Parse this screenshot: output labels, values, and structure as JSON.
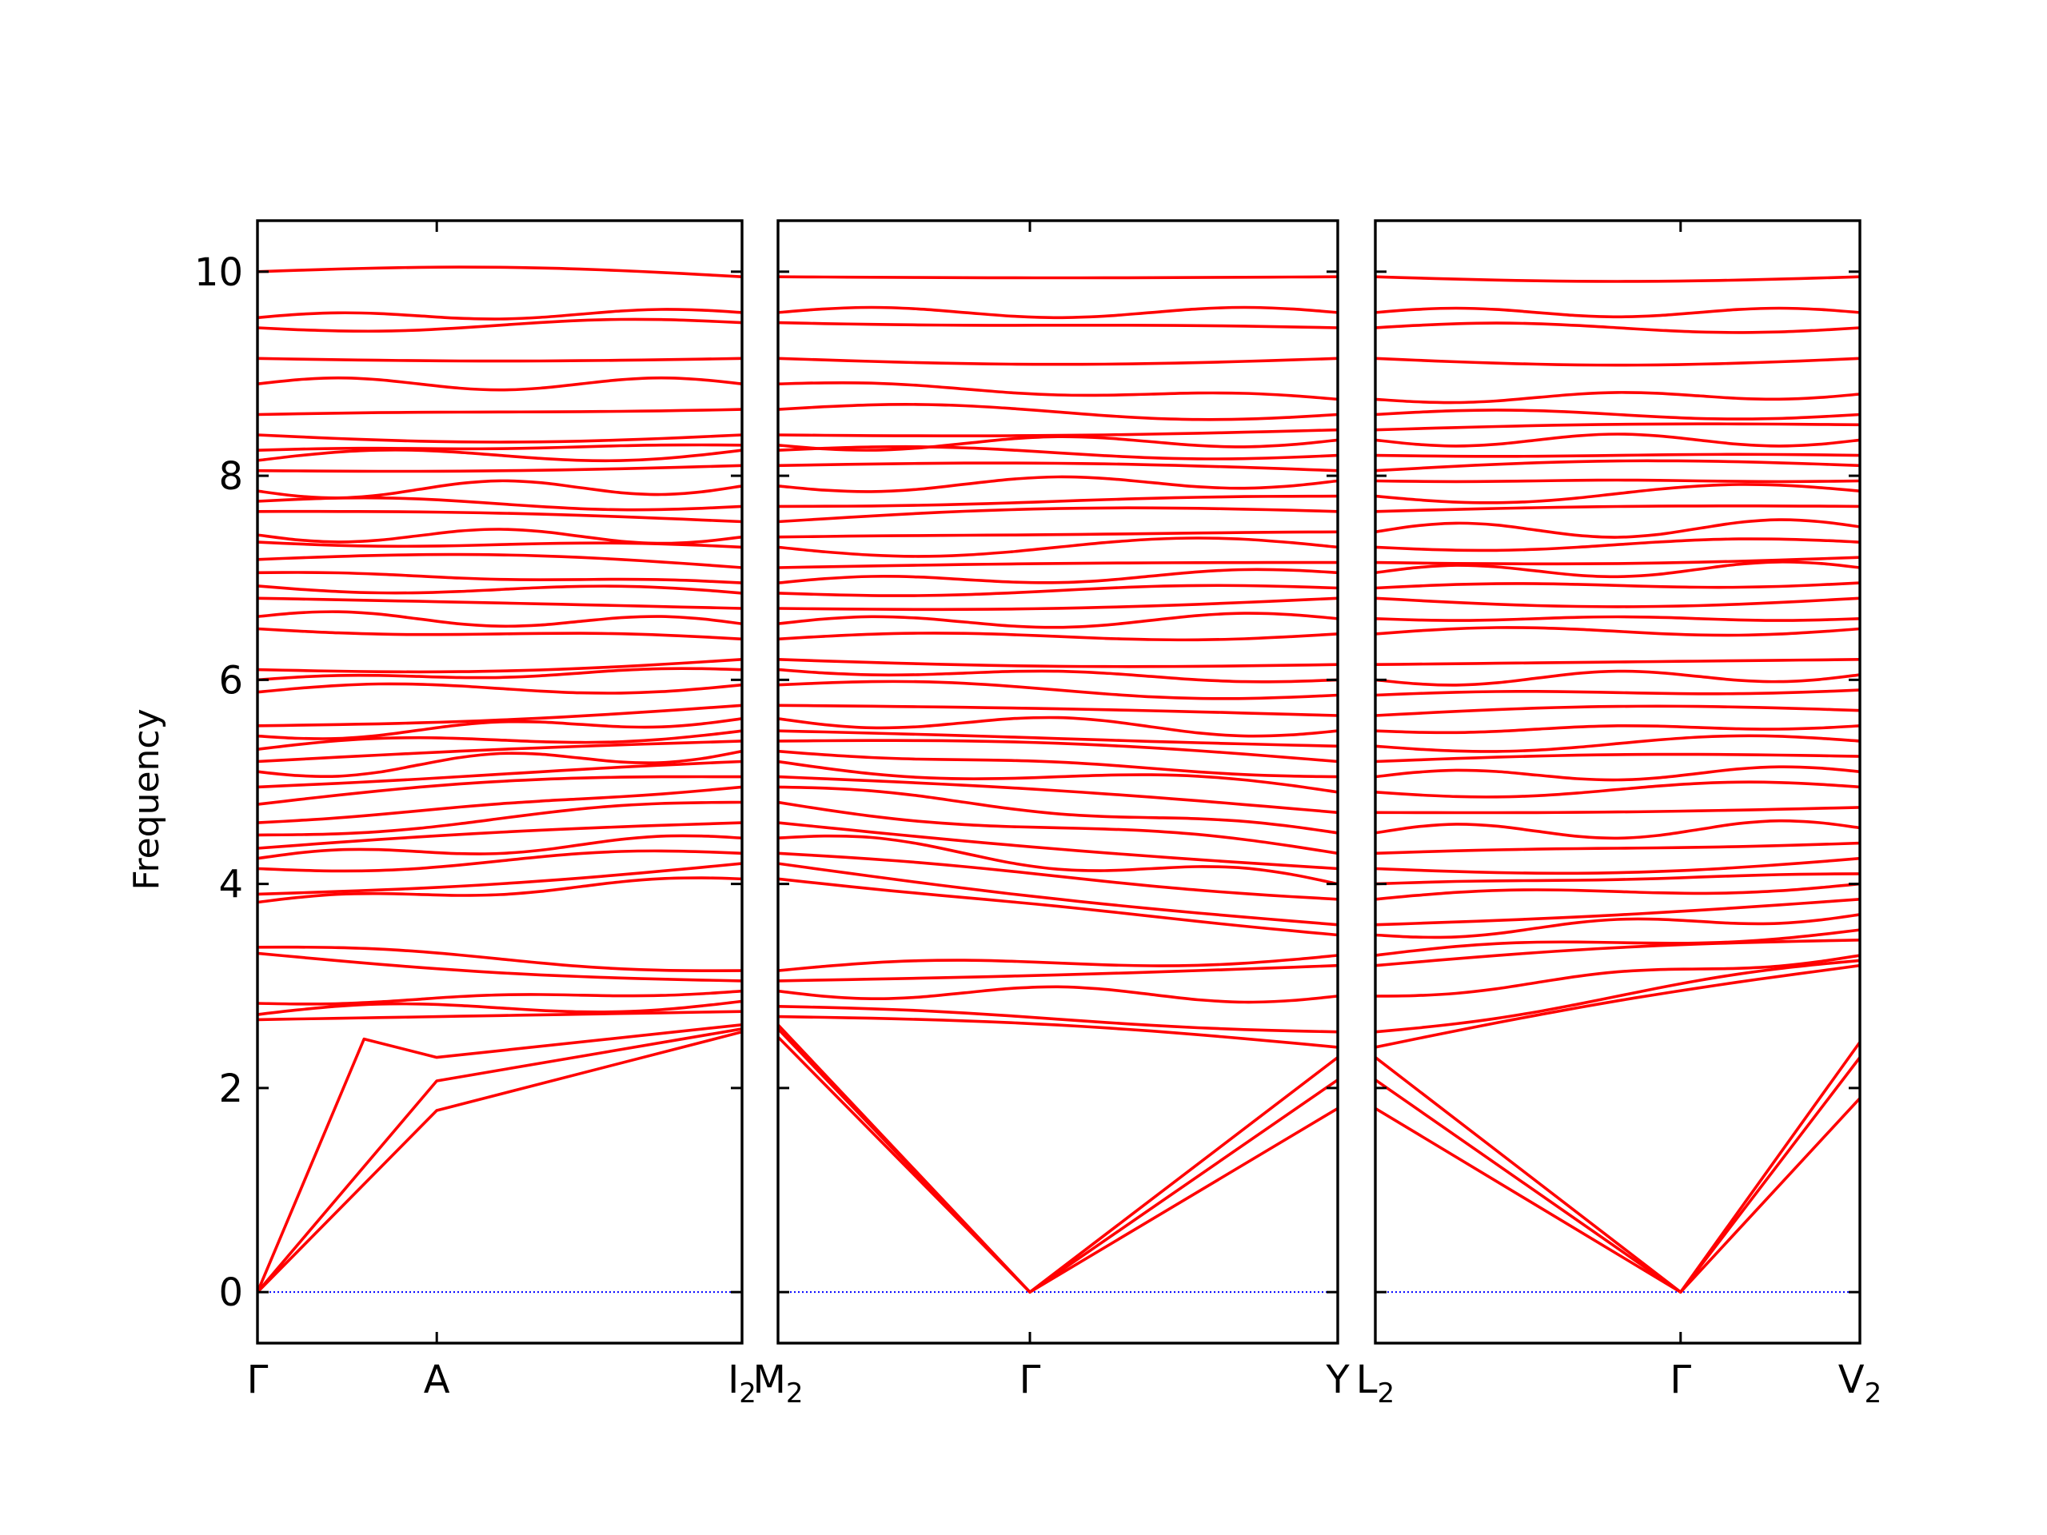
{
  "chart_data": {
    "type": "line",
    "title": "",
    "ylabel": "Frequency",
    "ylim": [
      -0.5,
      10.5
    ],
    "yticks": [
      0,
      2,
      4,
      6,
      8,
      10
    ],
    "grid": false,
    "line_color": "#ff0000",
    "zero_line_color": "#0000ff",
    "panels": [
      {
        "segments": [
          {
            "label": "Γ",
            "sub": ""
          },
          {
            "label": "A",
            "sub": ""
          },
          {
            "label": "I",
            "sub": "2"
          }
        ],
        "x": [
          0,
          0.37,
          1
        ],
        "acoustic": [
          {
            "name": "ac1",
            "x": [
              0,
              0.37,
              1
            ],
            "y": [
              0,
              1.78,
              2.55
            ]
          },
          {
            "name": "ac2",
            "x": [
              0,
              0.37,
              1
            ],
            "y": [
              0,
              2.07,
              2.58
            ]
          },
          {
            "name": "ac3",
            "x": [
              0,
              0.22,
              0.37,
              1
            ],
            "y": [
              0,
              2.48,
              2.3,
              2.62
            ]
          }
        ],
        "optical_start_end": [
          [
            2.67,
            2.75
          ],
          [
            2.72,
            2.85
          ],
          [
            2.83,
            2.95
          ],
          [
            3.32,
            3.05
          ],
          [
            3.38,
            3.15
          ],
          [
            3.82,
            4.05
          ],
          [
            3.9,
            4.2
          ],
          [
            4.15,
            4.3
          ],
          [
            4.25,
            4.45
          ],
          [
            4.35,
            4.6
          ],
          [
            4.48,
            4.8
          ],
          [
            4.6,
            4.95
          ],
          [
            4.78,
            5.05
          ],
          [
            4.95,
            5.2
          ],
          [
            5.1,
            5.3
          ],
          [
            5.2,
            5.4
          ],
          [
            5.32,
            5.5
          ],
          [
            5.45,
            5.62
          ],
          [
            5.55,
            5.75
          ],
          [
            5.88,
            5.95
          ],
          [
            6.0,
            6.1
          ],
          [
            6.1,
            6.2
          ],
          [
            6.5,
            6.4
          ],
          [
            6.62,
            6.55
          ],
          [
            6.8,
            6.7
          ],
          [
            6.92,
            6.85
          ],
          [
            7.05,
            6.95
          ],
          [
            7.18,
            7.1
          ],
          [
            7.35,
            7.3
          ],
          [
            7.42,
            7.4
          ],
          [
            7.65,
            7.55
          ],
          [
            7.75,
            7.7
          ],
          [
            7.85,
            7.9
          ],
          [
            8.05,
            8.1
          ],
          [
            8.15,
            8.25
          ],
          [
            8.25,
            8.3
          ],
          [
            8.4,
            8.4
          ],
          [
            8.6,
            8.65
          ],
          [
            8.9,
            8.9
          ],
          [
            9.15,
            9.15
          ],
          [
            9.45,
            9.5
          ],
          [
            9.55,
            9.6
          ],
          [
            10.0,
            9.95
          ]
        ]
      },
      {
        "segments": [
          {
            "label": "M",
            "sub": "2"
          },
          {
            "label": "Γ",
            "sub": ""
          },
          {
            "label": "Y",
            "sub": ""
          }
        ],
        "x": [
          0,
          0.45,
          1
        ],
        "acoustic": [
          {
            "name": "ac1",
            "x": [
              0,
              0.45,
              1
            ],
            "y": [
              2.5,
              0,
              1.8
            ]
          },
          {
            "name": "ac2",
            "x": [
              0,
              0.45,
              1
            ],
            "y": [
              2.58,
              0,
              2.08
            ]
          },
          {
            "name": "ac3",
            "x": [
              0,
              0.45,
              1
            ],
            "y": [
              2.62,
              0,
              2.3
            ]
          }
        ],
        "optical_start_end": [
          [
            2.7,
            2.4
          ],
          [
            2.8,
            2.55
          ],
          [
            2.95,
            2.9
          ],
          [
            3.05,
            3.2
          ],
          [
            3.15,
            3.3
          ],
          [
            4.05,
            3.5
          ],
          [
            4.2,
            3.6
          ],
          [
            4.3,
            3.85
          ],
          [
            4.45,
            4.0
          ],
          [
            4.6,
            4.15
          ],
          [
            4.8,
            4.3
          ],
          [
            4.95,
            4.5
          ],
          [
            5.05,
            4.7
          ],
          [
            5.2,
            4.9
          ],
          [
            5.3,
            5.05
          ],
          [
            5.4,
            5.2
          ],
          [
            5.5,
            5.35
          ],
          [
            5.62,
            5.5
          ],
          [
            5.75,
            5.65
          ],
          [
            5.95,
            5.85
          ],
          [
            6.1,
            6.0
          ],
          [
            6.2,
            6.15
          ],
          [
            6.4,
            6.45
          ],
          [
            6.55,
            6.6
          ],
          [
            6.7,
            6.8
          ],
          [
            6.85,
            6.9
          ],
          [
            6.95,
            7.05
          ],
          [
            7.1,
            7.15
          ],
          [
            7.3,
            7.3
          ],
          [
            7.4,
            7.45
          ],
          [
            7.55,
            7.65
          ],
          [
            7.7,
            7.8
          ],
          [
            7.9,
            7.95
          ],
          [
            8.1,
            8.05
          ],
          [
            8.25,
            8.2
          ],
          [
            8.3,
            8.35
          ],
          [
            8.4,
            8.45
          ],
          [
            8.65,
            8.6
          ],
          [
            8.9,
            8.75
          ],
          [
            9.15,
            9.15
          ],
          [
            9.5,
            9.45
          ],
          [
            9.6,
            9.6
          ],
          [
            9.95,
            9.95
          ]
        ]
      },
      {
        "segments": [
          {
            "label": "L",
            "sub": "2"
          },
          {
            "label": "Γ",
            "sub": ""
          },
          {
            "label": "V",
            "sub": "2"
          }
        ],
        "x": [
          0,
          0.63,
          1
        ],
        "acoustic": [
          {
            "name": "ac1",
            "x": [
              0,
              0.63,
              1
            ],
            "y": [
              1.8,
              0,
              1.9
            ]
          },
          {
            "name": "ac2",
            "x": [
              0,
              0.63,
              1
            ],
            "y": [
              2.08,
              0,
              2.3
            ]
          },
          {
            "name": "ac3",
            "x": [
              0,
              0.63,
              1
            ],
            "y": [
              2.3,
              0,
              2.45
            ]
          }
        ],
        "optical_start_end": [
          [
            2.4,
            3.2
          ],
          [
            2.55,
            3.25
          ],
          [
            2.9,
            3.3
          ],
          [
            3.2,
            3.45
          ],
          [
            3.3,
            3.55
          ],
          [
            3.5,
            3.7
          ],
          [
            3.6,
            3.85
          ],
          [
            3.85,
            4.0
          ],
          [
            4.0,
            4.1
          ],
          [
            4.15,
            4.25
          ],
          [
            4.3,
            4.4
          ],
          [
            4.5,
            4.55
          ],
          [
            4.7,
            4.75
          ],
          [
            4.9,
            4.95
          ],
          [
            5.05,
            5.1
          ],
          [
            5.2,
            5.25
          ],
          [
            5.35,
            5.4
          ],
          [
            5.5,
            5.55
          ],
          [
            5.65,
            5.7
          ],
          [
            5.85,
            5.9
          ],
          [
            6.0,
            6.05
          ],
          [
            6.15,
            6.2
          ],
          [
            6.45,
            6.5
          ],
          [
            6.6,
            6.6
          ],
          [
            6.8,
            6.8
          ],
          [
            6.9,
            6.95
          ],
          [
            7.05,
            7.1
          ],
          [
            7.15,
            7.2
          ],
          [
            7.3,
            7.35
          ],
          [
            7.45,
            7.5
          ],
          [
            7.65,
            7.7
          ],
          [
            7.8,
            7.85
          ],
          [
            7.95,
            7.95
          ],
          [
            8.05,
            8.1
          ],
          [
            8.2,
            8.2
          ],
          [
            8.35,
            8.35
          ],
          [
            8.45,
            8.5
          ],
          [
            8.6,
            8.6
          ],
          [
            8.75,
            8.8
          ],
          [
            9.15,
            9.15
          ],
          [
            9.45,
            9.45
          ],
          [
            9.6,
            9.6
          ],
          [
            9.95,
            9.95
          ]
        ]
      }
    ]
  }
}
